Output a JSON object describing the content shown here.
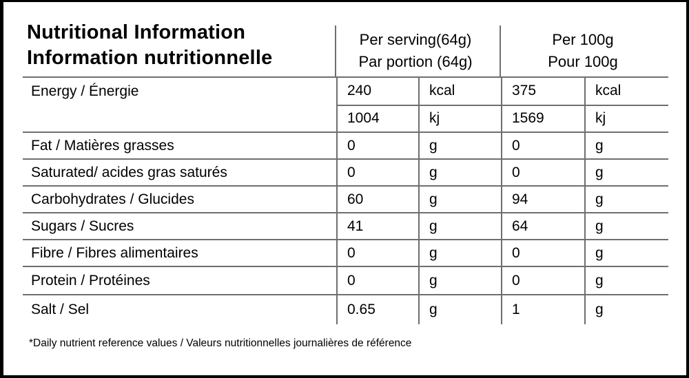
{
  "header": {
    "title_en": "Nutritional Information",
    "title_fr": "Information nutritionnelle",
    "col_serving_en": "Per serving(64g)",
    "col_serving_fr": "Par portion (64g)",
    "col_per100_en": "Per 100g",
    "col_per100_fr": "Pour 100g"
  },
  "rows": {
    "energy": {
      "label": "Energy / Énergie",
      "subrows": [
        {
          "serving_value": "240",
          "serving_unit": "kcal",
          "per100_value": "375",
          "per100_unit": "kcal"
        },
        {
          "serving_value": "1004",
          "serving_unit": "kj",
          "per100_value": "1569",
          "per100_unit": "kj"
        }
      ]
    },
    "simple": [
      {
        "label": "Fat / Matières grasses",
        "serving_value": "0",
        "serving_unit": "g",
        "per100_value": "0",
        "per100_unit": "g"
      },
      {
        "label": "Saturated/ acides gras saturés",
        "serving_value": "0",
        "serving_unit": "g",
        "per100_value": "0",
        "per100_unit": "g"
      },
      {
        "label": "Carbohydrates / Glucides",
        "serving_value": "60",
        "serving_unit": "g",
        "per100_value": "94",
        "per100_unit": "g"
      },
      {
        "label": "Sugars / Sucres",
        "serving_value": "41",
        "serving_unit": "g",
        "per100_value": "64",
        "per100_unit": "g"
      },
      {
        "label": "Fibre / Fibres alimentaires",
        "serving_value": "0",
        "serving_unit": "g",
        "per100_value": "0",
        "per100_unit": "g"
      },
      {
        "label": "Protein / Protéines",
        "serving_value": "0",
        "serving_unit": "g",
        "per100_value": "0",
        "per100_unit": "g"
      },
      {
        "label": "Salt / Sel",
        "serving_value": "0.65",
        "serving_unit": "g",
        "per100_value": "1",
        "per100_unit": "g"
      }
    ]
  },
  "footnote": "*Daily nutrient reference values / Valeurs nutritionnelles journalières de référence",
  "colors": {
    "frame": "#000000",
    "grid_line": "#6e6e6e",
    "text": "#000000",
    "background": "#ffffff"
  }
}
